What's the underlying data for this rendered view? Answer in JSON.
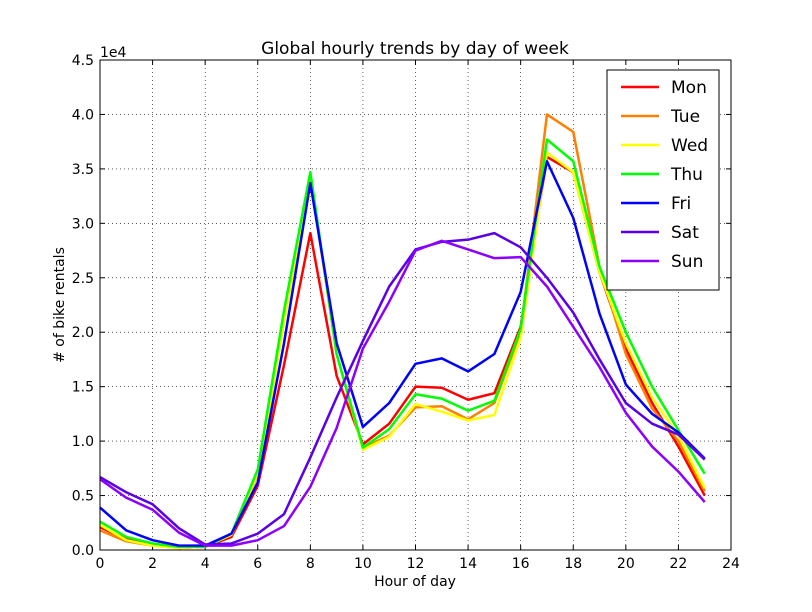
{
  "chart_data": {
    "type": "line",
    "title": "Global hourly trends by day of week",
    "x_label": "Hour of day",
    "y_label": "# of bike rentals",
    "y_offset_label": "1e4",
    "x": [
      0,
      1,
      2,
      3,
      4,
      5,
      6,
      7,
      8,
      9,
      10,
      11,
      12,
      13,
      14,
      15,
      16,
      17,
      18,
      19,
      20,
      21,
      22,
      23
    ],
    "xlim": [
      0,
      24
    ],
    "xticks": [
      0,
      2,
      4,
      6,
      8,
      10,
      12,
      14,
      16,
      18,
      20,
      22,
      24
    ],
    "ylim": [
      0,
      45000
    ],
    "yticks": [
      {
        "value": 0,
        "label": "0.0"
      },
      {
        "value": 5000,
        "label": "0.5"
      },
      {
        "value": 10000,
        "label": "1.0"
      },
      {
        "value": 15000,
        "label": "1.5"
      },
      {
        "value": 20000,
        "label": "2.0"
      },
      {
        "value": 25000,
        "label": "2.5"
      },
      {
        "value": 30000,
        "label": "3.0"
      },
      {
        "value": 35000,
        "label": "3.5"
      },
      {
        "value": 40000,
        "label": "4.0"
      },
      {
        "value": 45000,
        "label": "4.5"
      }
    ],
    "grid": true,
    "legend_position": "upper-right",
    "series": [
      {
        "name": "Mon",
        "color": "#ff0000",
        "values": [
          2100,
          1000,
          500,
          200,
          300,
          1200,
          5900,
          17000,
          29100,
          16000,
          9700,
          11600,
          15000,
          14900,
          13800,
          14400,
          20500,
          36100,
          34700,
          25500,
          18500,
          13500,
          9500,
          5000
        ]
      },
      {
        "name": "Tue",
        "color": "#ff8000",
        "values": [
          1800,
          800,
          400,
          200,
          300,
          1400,
          6900,
          21000,
          34200,
          18000,
          9400,
          10500,
          13100,
          13200,
          12000,
          13500,
          20000,
          40000,
          38400,
          26000,
          18000,
          13000,
          10000,
          5400
        ]
      },
      {
        "name": "Wed",
        "color": "#ffff00",
        "values": [
          2300,
          900,
          400,
          200,
          300,
          1400,
          7000,
          21000,
          34500,
          18000,
          9200,
          10400,
          13400,
          12700,
          11900,
          12400,
          19500,
          36500,
          34700,
          25500,
          19000,
          14000,
          10500,
          5700
        ]
      },
      {
        "name": "Thu",
        "color": "#00ff00",
        "values": [
          2600,
          1200,
          600,
          300,
          300,
          1500,
          7400,
          22000,
          34700,
          18000,
          9400,
          11100,
          14300,
          13900,
          12800,
          13700,
          20300,
          37700,
          35700,
          26000,
          20000,
          15000,
          11000,
          7000
        ]
      },
      {
        "name": "Fri",
        "color": "#0000ff",
        "values": [
          3900,
          1800,
          900,
          400,
          400,
          1500,
          6200,
          19000,
          33700,
          19000,
          11300,
          13500,
          17100,
          17600,
          16400,
          18000,
          23700,
          35700,
          30500,
          21700,
          15200,
          12500,
          10800,
          8400
        ]
      },
      {
        "name": "Sat",
        "color": "#5a00e6",
        "values": [
          6700,
          5300,
          4200,
          2000,
          500,
          600,
          1500,
          3300,
          8500,
          14000,
          19200,
          24200,
          27600,
          28300,
          28500,
          29100,
          27800,
          25000,
          21800,
          17500,
          13500,
          11600,
          10600,
          8300
        ]
      },
      {
        "name": "Sun",
        "color": "#8c00ff",
        "values": [
          6500,
          4800,
          3700,
          1600,
          400,
          400,
          900,
          2200,
          5800,
          11200,
          18500,
          22800,
          27500,
          28400,
          27600,
          26800,
          26900,
          24200,
          20500,
          16800,
          12600,
          9500,
          7200,
          4400
        ]
      }
    ]
  }
}
